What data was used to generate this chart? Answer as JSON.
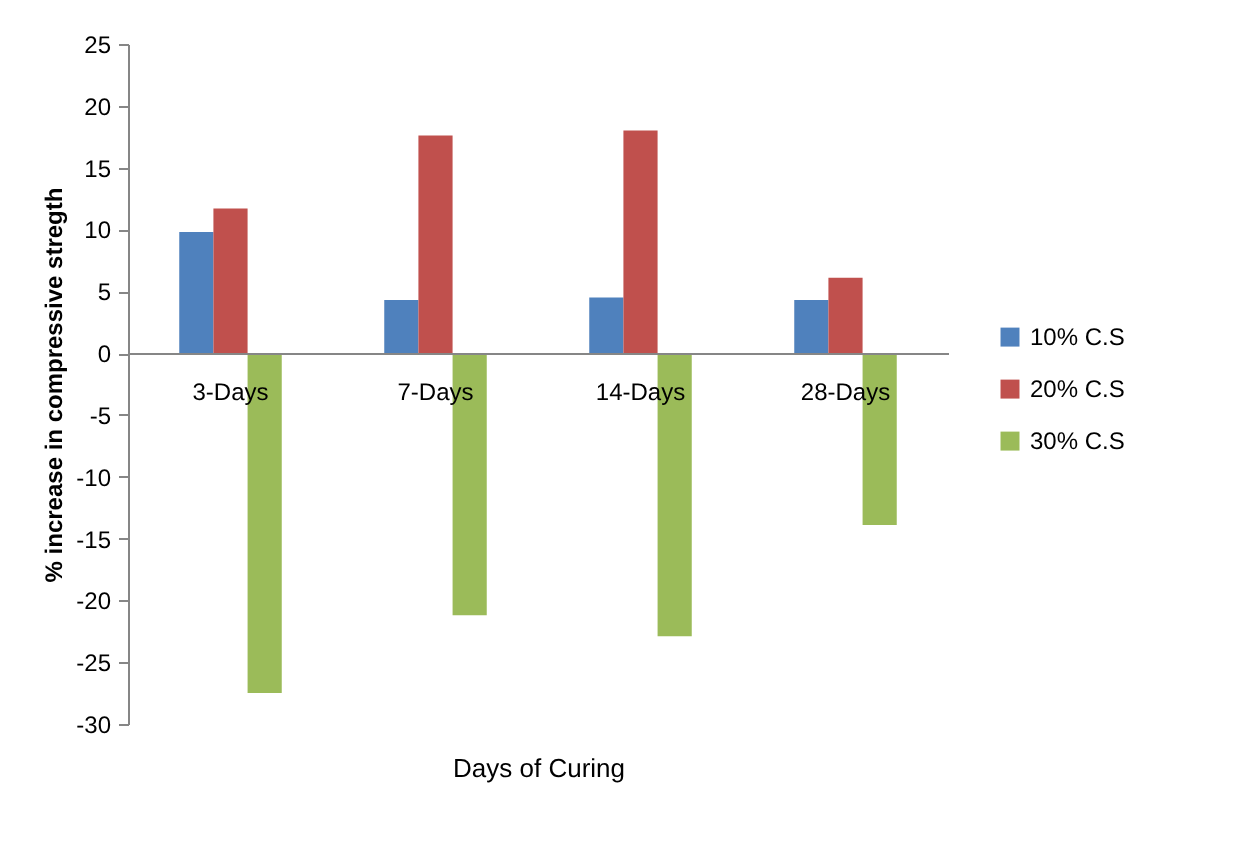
{
  "chart_data": {
    "type": "bar",
    "xlabel": "Days of Curing",
    "ylabel": "% increase in compressive stregth",
    "categories": [
      "3-Days",
      "7-Days",
      "14-Days",
      "28-Days"
    ],
    "series": [
      {
        "name": "10% C.S",
        "color": "#4f81bd",
        "values": [
          9.8,
          4.3,
          4.5,
          4.3
        ]
      },
      {
        "name": "20% C.S",
        "color": "#c0504d",
        "values": [
          11.7,
          17.6,
          18.0,
          6.1
        ]
      },
      {
        "name": "30% C.S",
        "color": "#9bbb59",
        "values": [
          -27.5,
          -21.2,
          -22.9,
          -13.9
        ]
      }
    ],
    "ylim": [
      -30,
      25
    ],
    "yticks": [
      -30,
      -25,
      -20,
      -15,
      -10,
      -5,
      0,
      5,
      10,
      15,
      20,
      25
    ],
    "grid": false,
    "legend": "right"
  }
}
